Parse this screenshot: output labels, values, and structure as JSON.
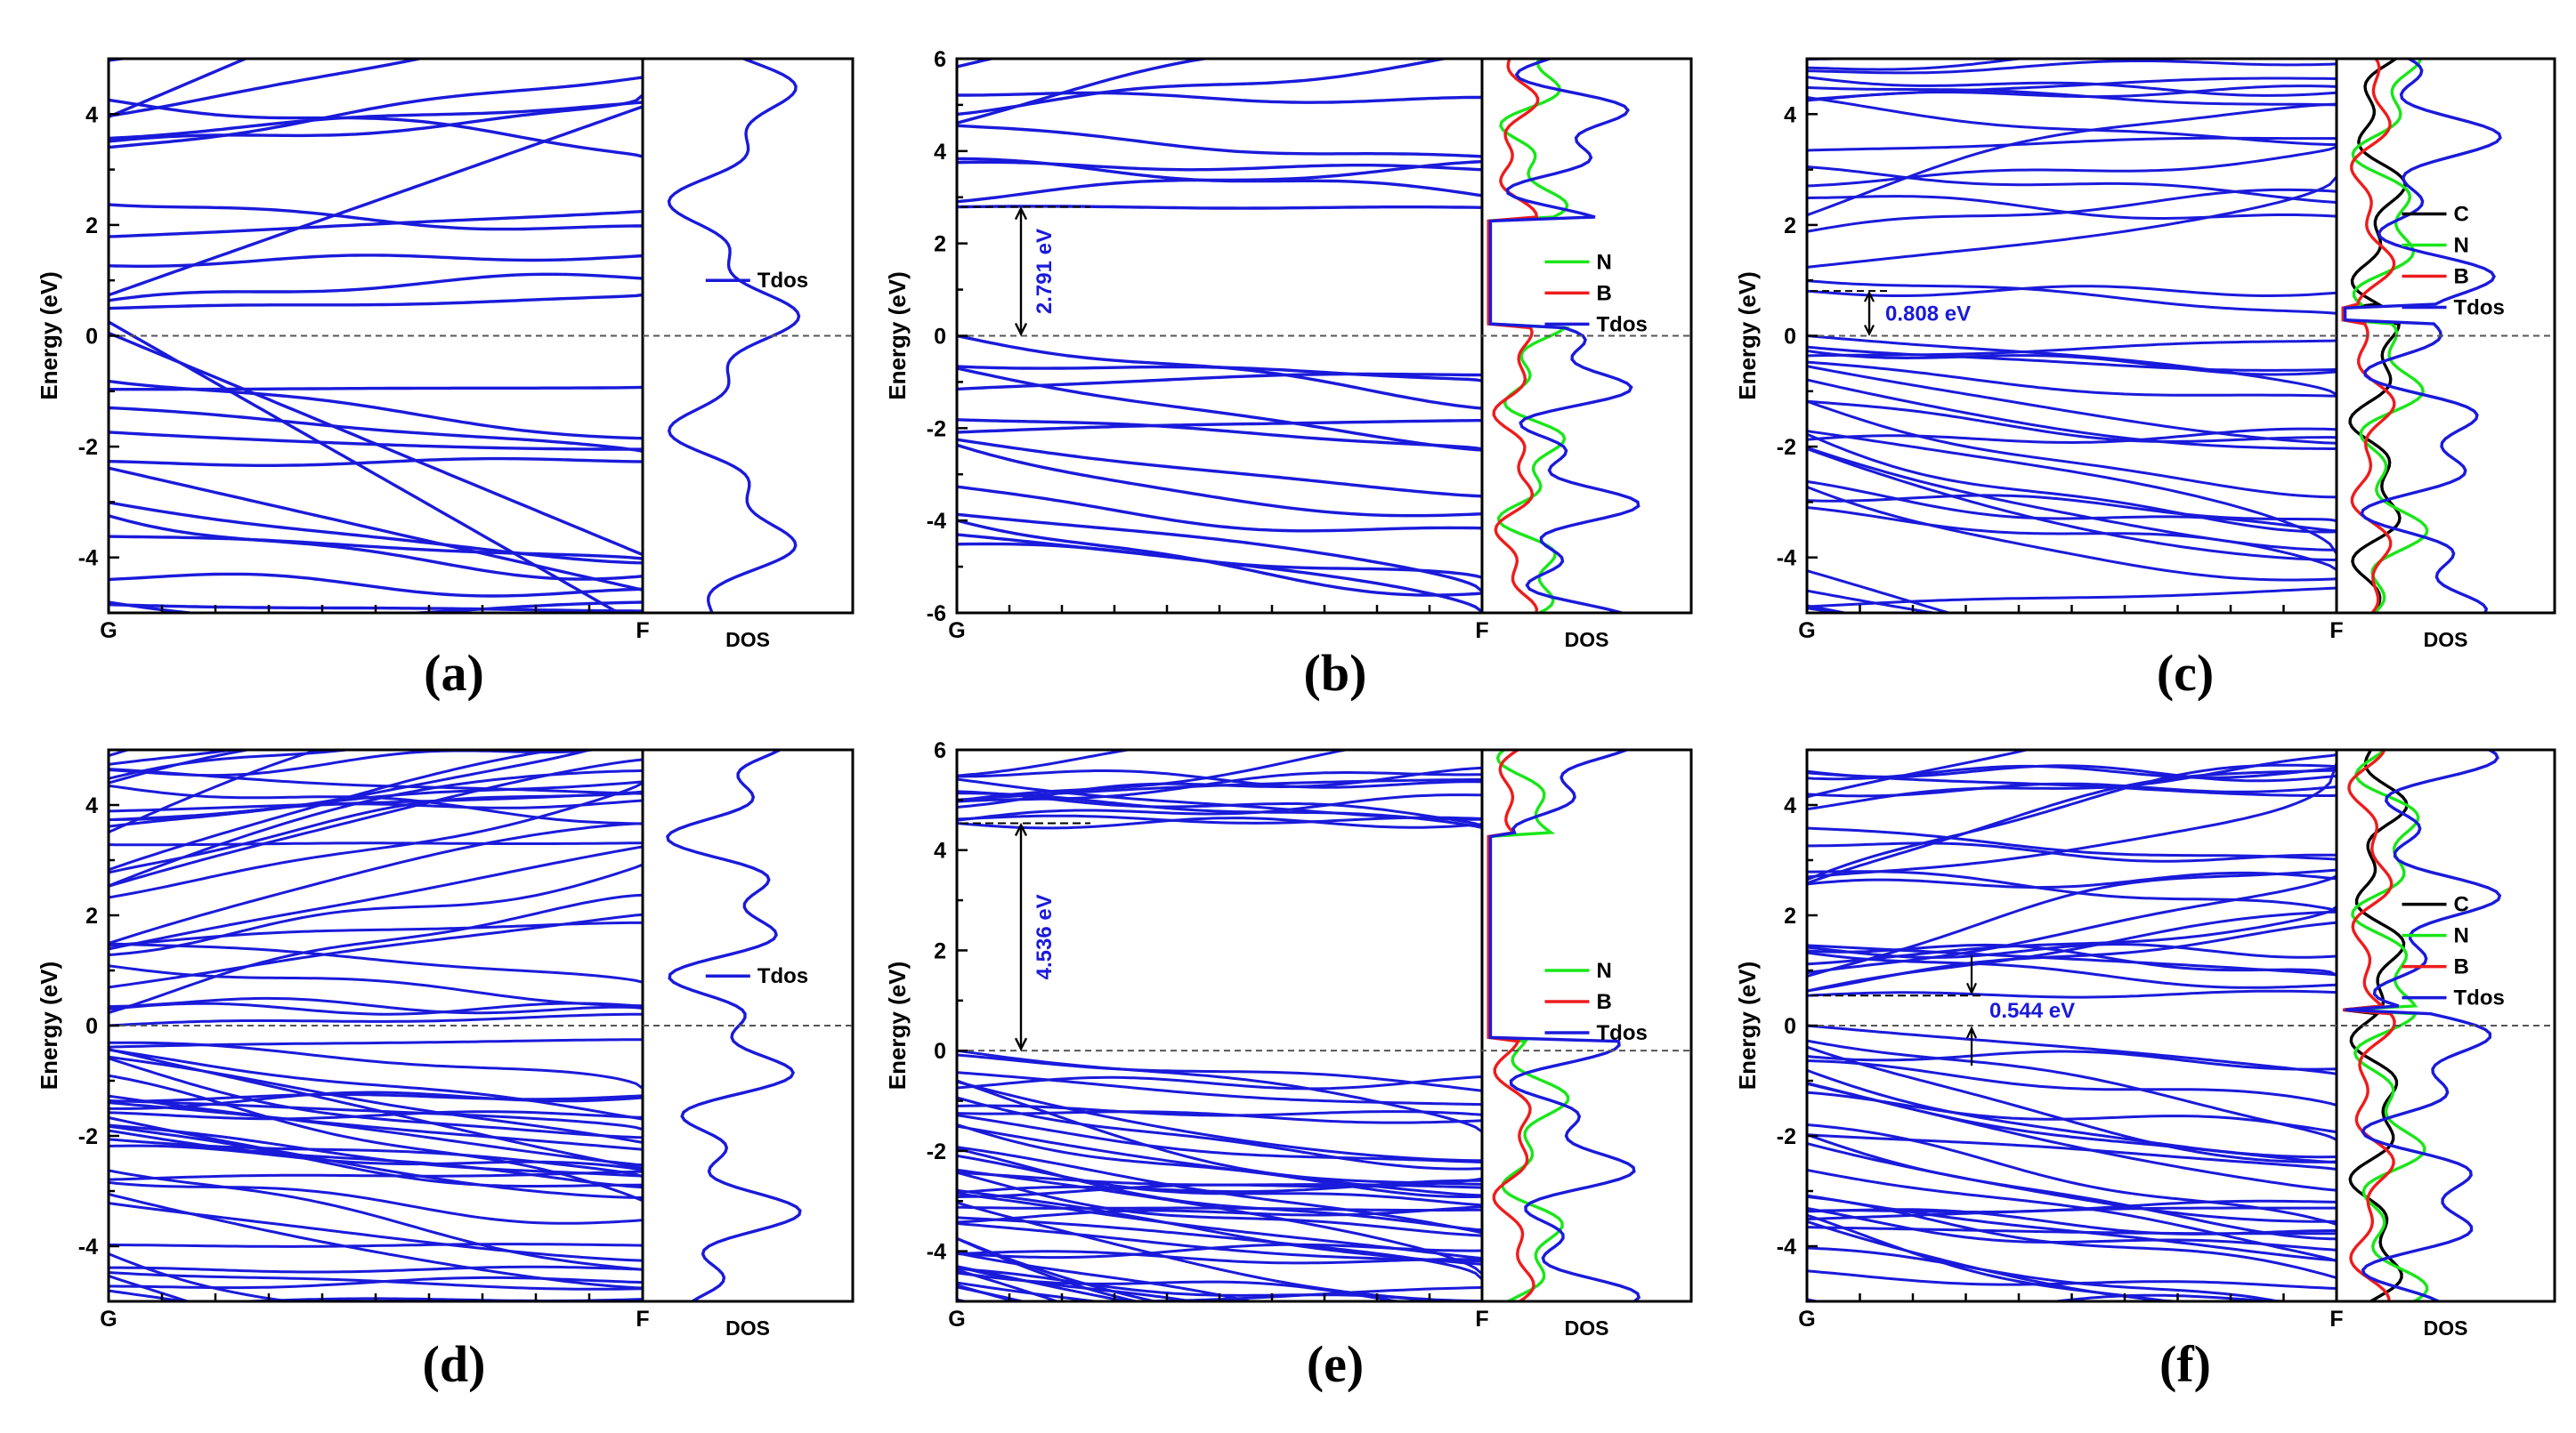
{
  "figure": {
    "kind": "electronic band structure and density of states, 2x3 panels"
  },
  "chart_data": [
    {
      "type": "line",
      "panel": "(a)",
      "ylabel": "Energy (eV)",
      "ylim": [
        -5,
        5
      ],
      "yticks": [
        -4,
        -2,
        0,
        2,
        4
      ],
      "kpoints": [
        "G",
        "F"
      ],
      "dos_label": "DOS",
      "fermi_level": 0,
      "legend": [
        {
          "name": "Tdos",
          "color": "#1a1adb"
        }
      ],
      "dos_series": [
        "Tdos"
      ],
      "bands": {
        "metallic": true,
        "conduction_edge": 0.25,
        "valence_edge": 0.05,
        "cb_count": 14,
        "vb_count": 14,
        "style": "sparse",
        "seed": 11
      },
      "gap": null
    },
    {
      "type": "line",
      "panel": "(b)",
      "ylabel": "Energy (eV)",
      "ylim": [
        -6,
        6
      ],
      "yticks": [
        -6,
        -4,
        -2,
        0,
        2,
        4,
        6
      ],
      "kpoints": [
        "G",
        "F"
      ],
      "dos_label": "DOS",
      "fermi_level": 0,
      "legend": [
        {
          "name": "N",
          "color": "#19e619"
        },
        {
          "name": "B",
          "color": "#ee1c1c"
        },
        {
          "name": "Tdos",
          "color": "#1a1adb"
        }
      ],
      "dos_series": [
        "N",
        "B",
        "Tdos"
      ],
      "bands": {
        "metallic": false,
        "conduction_edge": 2.791,
        "valence_edge": 0,
        "cb_count": 9,
        "vb_count": 14,
        "style": "sparse",
        "seed": 23
      },
      "gap": {
        "value": 2.791,
        "label": "2.791 eV",
        "from": 0,
        "to": 2.791
      }
    },
    {
      "type": "line",
      "panel": "(c)",
      "ylabel": "Energy (eV)",
      "ylim": [
        -5,
        5
      ],
      "yticks": [
        -4,
        -2,
        0,
        2,
        4
      ],
      "kpoints": [
        "G",
        "F"
      ],
      "dos_label": "DOS",
      "fermi_level": 0,
      "legend": [
        {
          "name": "C",
          "color": "#000000"
        },
        {
          "name": "N",
          "color": "#19e619"
        },
        {
          "name": "B",
          "color": "#ee1c1c"
        },
        {
          "name": "Tdos",
          "color": "#1a1adb"
        }
      ],
      "dos_series": [
        "C",
        "N",
        "B",
        "Tdos"
      ],
      "bands": {
        "metallic": false,
        "conduction_edge": 0.808,
        "valence_edge": 0,
        "cb_count": 20,
        "vb_count": 26,
        "style": "dense",
        "seed": 37
      },
      "gap": {
        "value": 0.808,
        "label": "0.808 eV",
        "from": 0,
        "to": 0.808
      }
    },
    {
      "type": "line",
      "panel": "(d)",
      "ylabel": "Energy (eV)",
      "ylim": [
        -5,
        5
      ],
      "yticks": [
        -4,
        -2,
        0,
        2,
        4
      ],
      "kpoints": [
        "G",
        "F"
      ],
      "dos_label": "DOS",
      "fermi_level": 0,
      "legend": [
        {
          "name": "Tdos",
          "color": "#1a1adb"
        }
      ],
      "dos_series": [
        "Tdos"
      ],
      "bands": {
        "metallic": false,
        "conduction_edge": 0.3,
        "valence_edge": 0,
        "cb_count": 30,
        "vb_count": 36,
        "style": "dense",
        "seed": 41
      },
      "gap": null
    },
    {
      "type": "line",
      "panel": "(e)",
      "ylabel": "Energy (eV)",
      "ylim": [
        -5,
        6
      ],
      "yticks": [
        -4,
        -2,
        0,
        2,
        4,
        6
      ],
      "kpoints": [
        "G",
        "F"
      ],
      "dos_label": "DOS",
      "fermi_level": 0,
      "legend": [
        {
          "name": "N",
          "color": "#19e619"
        },
        {
          "name": "B",
          "color": "#ee1c1c"
        },
        {
          "name": "Tdos",
          "color": "#1a1adb"
        }
      ],
      "dos_series": [
        "N",
        "B",
        "Tdos"
      ],
      "bands": {
        "metallic": false,
        "conduction_edge": 4.536,
        "valence_edge": 0,
        "cb_count": 12,
        "vb_count": 44,
        "style": "dense",
        "seed": 53
      },
      "gap": {
        "value": 4.536,
        "label": "4.536 eV",
        "from": 0,
        "to": 4.536
      }
    },
    {
      "type": "line",
      "panel": "(f)",
      "ylabel": "Energy (eV)",
      "ylim": [
        -5,
        5
      ],
      "yticks": [
        -4,
        -2,
        0,
        2,
        4
      ],
      "kpoints": [
        "G",
        "F"
      ],
      "dos_label": "DOS",
      "fermi_level": 0,
      "legend": [
        {
          "name": "C",
          "color": "#000000"
        },
        {
          "name": "N",
          "color": "#19e619"
        },
        {
          "name": "B",
          "color": "#ee1c1c"
        },
        {
          "name": "Tdos",
          "color": "#1a1adb"
        }
      ],
      "dos_series": [
        "C",
        "N",
        "B",
        "Tdos"
      ],
      "bands": {
        "metallic": false,
        "conduction_edge": 0.544,
        "valence_edge": 0,
        "cb_count": 24,
        "vb_count": 28,
        "style": "dense",
        "seed": 67
      },
      "gap": {
        "value": 0.544,
        "label": "0.544 eV",
        "from": 0,
        "to": 0.544
      }
    }
  ]
}
